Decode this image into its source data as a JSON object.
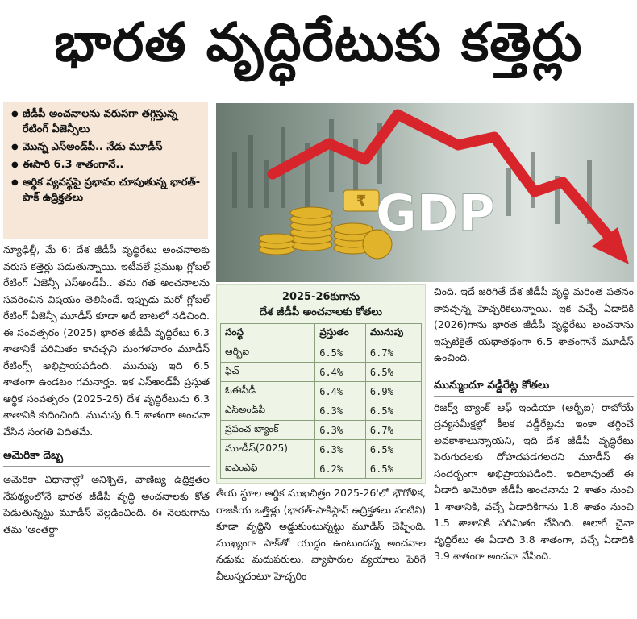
{
  "headline": "భారత వృద్ధిరేటుకు కత్తెర్లు",
  "highlights": [
    "జీడీపీ అంచనాలను వరుసగా తగ్గిస్తున్న రేటింగ్ ఏజెన్సీలు",
    "మొన్న ఎస్అండ్‌పీ.. నేడు మూడీస్",
    "ఈసారి 6.3 శాతంగానే..",
    "ఆర్థిక వ్యవస్థపై ప్రభావం చూపుతున్న భారత్-పాక్ ఉద్రిక్తతలు"
  ],
  "photo": {
    "caption_text": "GDP",
    "colors": {
      "arrow": "#d8252b",
      "coins": "#e0b32a",
      "backdrop": "#93a29a"
    }
  },
  "article": {
    "col1_para1": "న్యూఢిల్లీ, మే 6: దేశ జీడీపీ వృద్ధిరేటు అంచనాలకు వరుస కత్తెర్లు పడుతున్నాయి. ఇటీవలే ప్రముఖ గ్లోబల్ రేటింగ్ ఏజెన్సీ ఎస్అండ్‌పీ.. తమ గత అంచనాలను సవరించిన విషయం తెలిసిందే. ఇప్పుడు మరో గ్లోబల్ రేటింగ్ ఏజెన్సీ మూడీస్ కూడా అదే బాటలో నడిచింది. ఈ సంవత్సరం (2025) భారత జీడీపీ వృద్ధిరేటు 6.3 శాతానికే పరిమితం కావచ్చని మంగళవారం మూడీస్ రేటింగ్స్ అభిప్రాయపడింది. మునుపు ఇది 6.5 శాతంగా ఉండటం గమనార్హం. ఇక ఎస్అండ్‌పీ ప్రస్తుత ఆర్థిక సంవత్సరం (2025-26) దేశ వృద్ధిరేటును 6.3 శాతానికి కుదించింది. మునుపు 6.5 శాతంగా అంచనా వేసిన సంగతి విదితమే.",
    "subhead1": "అమెరికా దెబ్బ",
    "col1_para2": "అమెరికా విధానాల్లో అనిశ్చితి, వాణిజ్య ఉద్రిక్తతల నేపథ్యంలోనే భారత జీడీపీ వృద్ధి అంచనాలకు కోత పెడుతున్నట్టు మూడీస్ వెల్లడించింది. ఈ నెలకుగాను తమ 'అంతర్జా",
    "col2_para1": "తీయ స్థూల ఆర్థిక ముఖచిత్రం 2025-26'లో భౌగోళిక, రాజకీయ ఒత్తిళ్లు (భారత్-పాకిస్థాన్ ఉద్రిక్తతలు వంటివి) కూడా వృద్ధిని అడ్డుకుంటున్నట్టు మూడీస్ చెప్పింది. ముఖ్యంగా పాక్‌తో యుద్ధం ఉంటుందన్న అంచనాల నడుమ మదుపరులు, వ్యాపారుల వ్యయాలు పెరిగే వీలున్నదంటూ హెచ్చరిం",
    "col3_para1": "చింది. ఇదే జరిగితే దేశ జీడీపీ వృద్ధి మరింత పతనం కావచ్చన్న హెచ్చరికలున్నాయి. ఇక వచ్చే ఏడాదికి (2026)గాను భారత జీడీపీ వృద్ధిరేటు అంచనాను ఇప్పటికైతే యథాతథంగా 6.5 శాతంగానే మూడీస్ ఉంచింది.",
    "subhead2": "మున్ముందూ వడ్డీరేట్ల కోతలు",
    "col3_para2": "రిజర్వ్ బ్యాంక్ ఆఫ్ ఇండియా (ఆర్బీఐ) రాబోయే ద్రవ్యసమీక్షల్లో కీలక వడ్డీరేట్లను ఇంకా తగ్గించే అవకాశాలున్నాయని, ఇది దేశ జీడీపీ వృద్ధిరేటు పెరుగుదలకు దోహదపడగలదని మూడీస్ ఈ సందర్భంగా అభిప్రాయపడింది. ఇదిలావుంటే ఈ ఏడాది అమెరికా జీడీపీ అంచనాను 2 శాతం నుంచి 1 శాతానికి, వచ్చే ఏడాదికిగాను 1.8 శాతం నుంచి 1.5 శాతానికి పరిమితం చేసింది. అలాగే చైనా వృద్ధిరేటు ఈ ఏడాది 3.8 శాతంగా, వచ్చే ఏడాదికి 3.9 శాతంగా అంచనా వేసింది."
  },
  "table": {
    "title_line1": "2025-26కుగాను",
    "title_line2": "దేశ జీడీపీ అంచనాలకు కోతలు",
    "headers": [
      "సంస్థ",
      "ప్రస్తుతం",
      "మునుపు"
    ],
    "rows": [
      [
        "ఆర్బీఐ",
        "6.5%",
        "6.7%"
      ],
      [
        "ఫిచ్",
        "6.4%",
        "6.5%"
      ],
      [
        "ఓఈసీడీ",
        "6.4%",
        "6.9%"
      ],
      [
        "ఎస్అండ్‌పీ",
        "6.3%",
        "6.5%"
      ],
      [
        "ప్రపంచ బ్యాంక్",
        "6.3%",
        "6.7%"
      ],
      [
        "మూడీస్(2025)",
        "6.3%",
        "6.5%"
      ],
      [
        "ఐఎంఎఫ్",
        "6.2%",
        "6.5%"
      ]
    ]
  }
}
